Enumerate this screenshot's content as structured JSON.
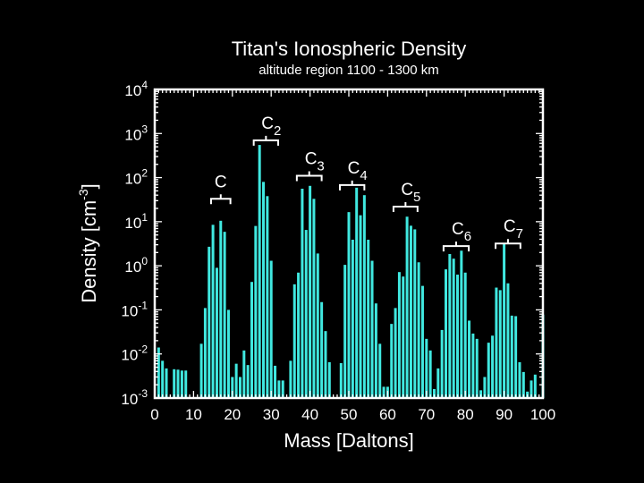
{
  "chart_data": {
    "type": "bar",
    "title": "Titan's Ionospheric Density",
    "subtitle": "altitude region 1100 - 1300 km",
    "xlabel": "Mass [Daltons]",
    "ylabel_main": "Density [cm",
    "ylabel_exp": "-3",
    "ylabel_end": "]",
    "xlim": [
      0,
      100
    ],
    "ylim": [
      0.001,
      10000
    ],
    "yscale": "log",
    "grid": false,
    "bar_color": "#40E8E0",
    "x_ticks": [
      "0",
      "10",
      "20",
      "30",
      "40",
      "50",
      "60",
      "70",
      "80",
      "90",
      "100"
    ],
    "y_ticks": [
      {
        "base": "10",
        "exp": "4"
      },
      {
        "base": "10",
        "exp": "3"
      },
      {
        "base": "10",
        "exp": "2"
      },
      {
        "base": "10",
        "exp": "1"
      },
      {
        "base": "10",
        "exp": "0"
      },
      {
        "base": "10",
        "exp": "-1"
      },
      {
        "base": "10",
        "exp": "-2"
      },
      {
        "base": "10",
        "exp": "-3"
      }
    ],
    "x": [
      1,
      2,
      3,
      5,
      6,
      7,
      8,
      12,
      13,
      14,
      15,
      16,
      17,
      18,
      19,
      20,
      21,
      22,
      23,
      24,
      25,
      26,
      27,
      28,
      29,
      30,
      31,
      32,
      33,
      35,
      36,
      37,
      38,
      39,
      40,
      41,
      42,
      43,
      44,
      45,
      48,
      49,
      50,
      51,
      52,
      53,
      54,
      55,
      56,
      57,
      58,
      59,
      60,
      61,
      62,
      63,
      64,
      65,
      66,
      67,
      68,
      69,
      70,
      71,
      72,
      73,
      74,
      75,
      76,
      77,
      78,
      79,
      80,
      81,
      82,
      83,
      84,
      85,
      86,
      87,
      88,
      89,
      90,
      91,
      92,
      93,
      94,
      95,
      96,
      97,
      98,
      100
    ],
    "values": [
      0.014,
      0.007,
      0.0047,
      0.0045,
      0.0044,
      0.0042,
      0.0042,
      0.017,
      0.11,
      2.7,
      8.5,
      0.9,
      10.5,
      5.9,
      0.1,
      0.003,
      0.006,
      0.003,
      0.012,
      0.0056,
      0.43,
      8,
      550,
      80,
      38,
      1.3,
      0.0054,
      0.0025,
      0.0025,
      0.007,
      0.38,
      0.7,
      56,
      6.5,
      65,
      33,
      1.9,
      0.15,
      0.033,
      0.0065,
      0.0062,
      1.05,
      16.5,
      3.9,
      59,
      14,
      40,
      3.9,
      1.3,
      0.14,
      0.017,
      0.0018,
      0.0018,
      0.048,
      0.11,
      0.72,
      0.57,
      13,
      8.1,
      6.7,
      1.2,
      0.35,
      0.022,
      0.012,
      0.0016,
      0.0047,
      0.035,
      0.83,
      1.85,
      1.45,
      0.63,
      2.2,
      0.7,
      0.057,
      0.029,
      0.022,
      0.0015,
      0.003,
      0.018,
      0.026,
      0.32,
      0.28,
      3.1,
      0.4,
      0.074,
      0.072,
      0.0065,
      0.0039,
      0.0014,
      0.0025,
      0.0034,
      0.078
    ],
    "annotations": [
      {
        "label": "C",
        "sub": "",
        "x_from": 14.5,
        "x_to": 19.5,
        "y": 33
      },
      {
        "label": "C",
        "sub": "2",
        "x_from": 25.5,
        "x_to": 31.8,
        "y": 700
      },
      {
        "label": "C",
        "sub": "3",
        "x_from": 36.6,
        "x_to": 43,
        "y": 110
      },
      {
        "label": "C",
        "sub": "4",
        "x_from": 47.7,
        "x_to": 54,
        "y": 68
      },
      {
        "label": "C",
        "sub": "5",
        "x_from": 61.5,
        "x_to": 67.7,
        "y": 22
      },
      {
        "label": "C",
        "sub": "6",
        "x_from": 74.4,
        "x_to": 80.9,
        "y": 2.8
      },
      {
        "label": "C",
        "sub": "7",
        "x_from": 87.8,
        "x_to": 94.2,
        "y": 3.2
      }
    ]
  }
}
